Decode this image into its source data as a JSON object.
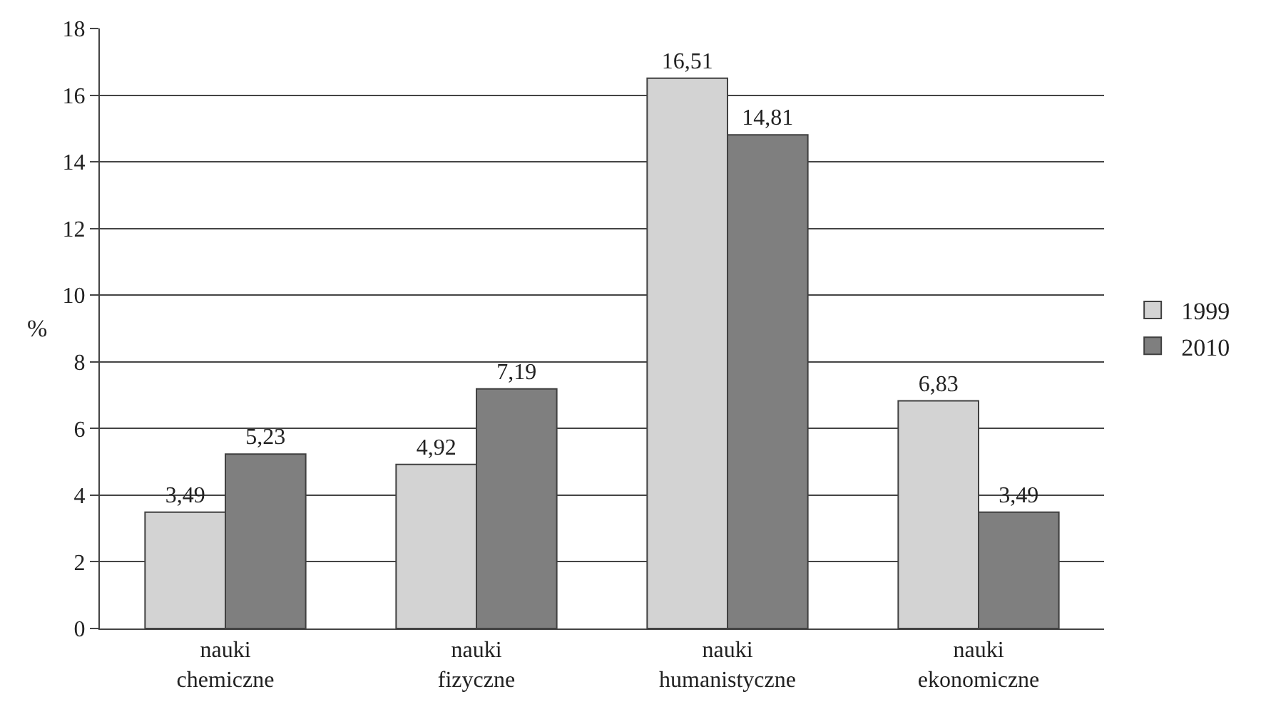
{
  "chart_data": {
    "type": "bar",
    "ylabel": "%",
    "categories": [
      "nauki\nchemiczne",
      "nauki\nfizyczne",
      "nauki\nhumanistyczne",
      "nauki\nekonomiczne"
    ],
    "series": [
      {
        "name": "1999",
        "color": "#d3d3d3",
        "values": [
          3.49,
          4.92,
          16.51,
          6.83
        ],
        "value_labels": [
          "3,49",
          "4,92",
          "16,51",
          "6,83"
        ]
      },
      {
        "name": "2010",
        "color": "#7f7f7f",
        "values": [
          5.23,
          7.19,
          14.81,
          3.49
        ],
        "value_labels": [
          "5,23",
          "7,19",
          "14,81",
          "3,49"
        ]
      }
    ],
    "ylim": [
      0,
      18
    ],
    "yticks": [
      0,
      2,
      4,
      6,
      8,
      10,
      12,
      14,
      16,
      18
    ],
    "grid": "y",
    "legend": "right"
  }
}
